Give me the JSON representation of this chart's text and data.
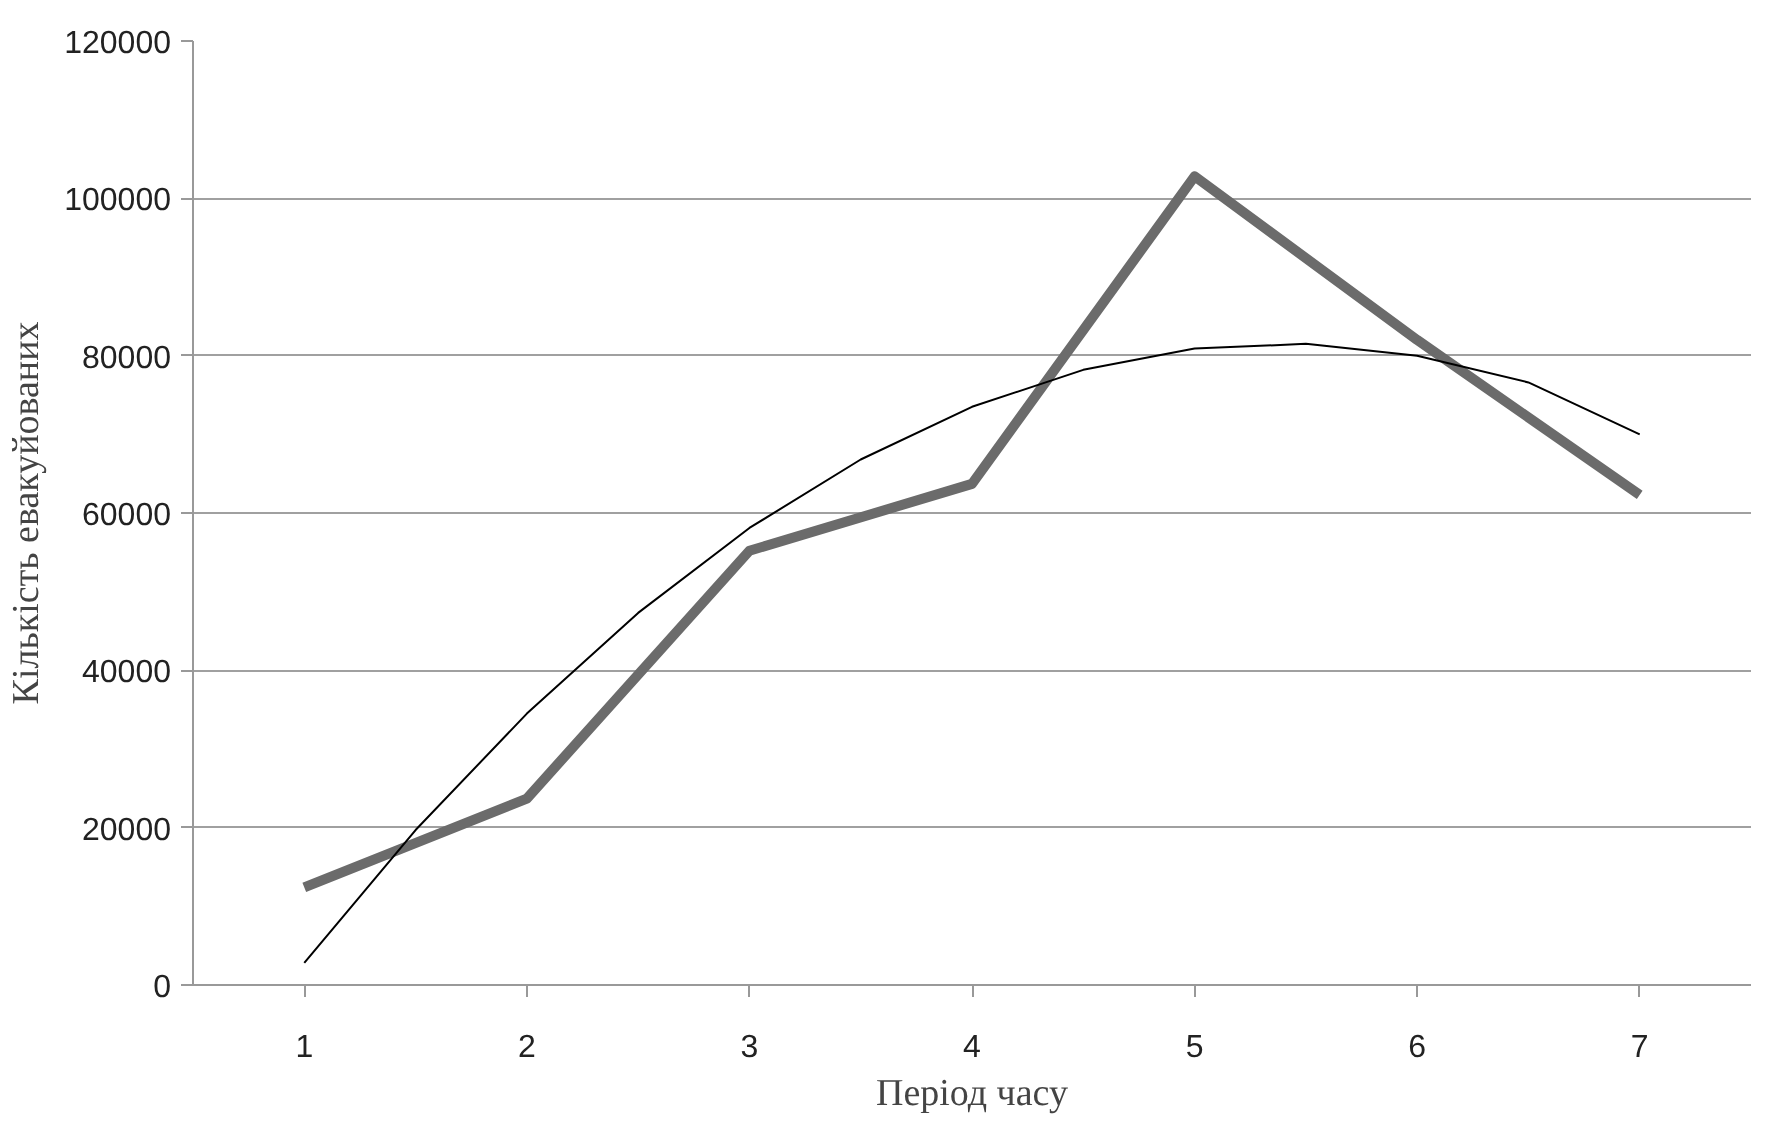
{
  "chart_data": {
    "type": "line",
    "xlabel": "Період часу",
    "ylabel": "Кількість евакуйованих",
    "xlim": [
      0.5,
      7.5
    ],
    "xticks": [
      1,
      2,
      3,
      4,
      5,
      6,
      7
    ],
    "ylim": [
      0,
      120000
    ],
    "yticks": [
      0,
      20000,
      40000,
      60000,
      80000,
      100000,
      120000
    ],
    "grid": "y",
    "marker": "none",
    "series": [
      {
        "color": "#6b6b6b",
        "x": [
          1,
          2,
          3,
          4,
          5,
          6,
          7
        ],
        "values": [
          12400,
          23700,
          55200,
          63700,
          102800,
          82000,
          62300
        ]
      },
      {
        "type": "line",
        "color": "#000000",
        "x": [
          1,
          1.5,
          2,
          2.5,
          3,
          3.5,
          4,
          4.5,
          5,
          5.5,
          6,
          6.5,
          7
        ],
        "values": [
          2800,
          19700,
          34500,
          47300,
          58100,
          66800,
          73500,
          78200,
          80900,
          81500,
          80000,
          76600,
          70000
        ]
      }
    ]
  }
}
